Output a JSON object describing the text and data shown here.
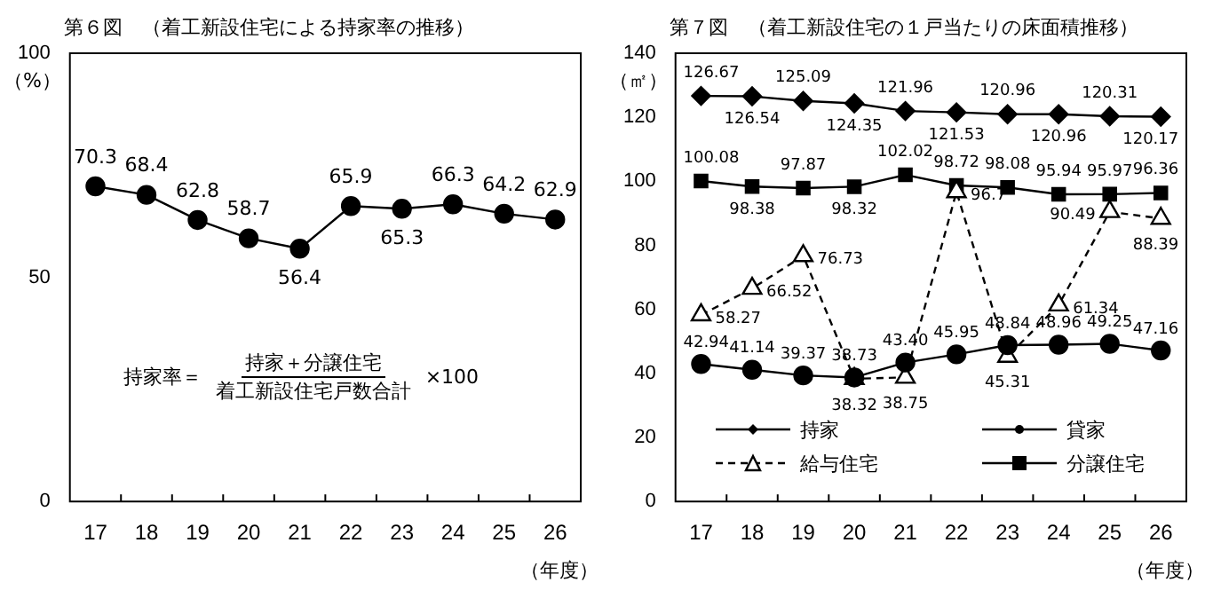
{
  "chart_data": [
    {
      "type": "line",
      "title": "第６図　（着工新設住宅による持家率の推移）",
      "ylabel": "（%）",
      "xlabel": "（年度）",
      "categories": [
        "17",
        "18",
        "19",
        "20",
        "21",
        "22",
        "23",
        "24",
        "25",
        "26"
      ],
      "series": [
        {
          "color": "#000000",
          "values": [
            70.3,
            68.4,
            62.8,
            58.7,
            56.4,
            65.9,
            65.3,
            66.3,
            64.2,
            62.9
          ]
        }
      ],
      "ylim": [
        0,
        100
      ],
      "yticks": [
        0,
        50,
        100
      ],
      "grid": false,
      "legend": false,
      "marker": "circle",
      "line_style": "solid",
      "data_labels": true,
      "annotations": [
        "持家率＝",
        "持家＋分譲住宅",
        "着工新設住宅戸数合計",
        "×100"
      ]
    },
    {
      "type": "line",
      "title": "第７図　（着工新設住宅の１戸当たりの床面積推移）",
      "ylabel": "（㎡）",
      "xlabel": "（年度）",
      "categories": [
        "17",
        "18",
        "19",
        "20",
        "21",
        "22",
        "23",
        "24",
        "25",
        "26"
      ],
      "series": [
        {
          "name": "持家",
          "color": "#000000",
          "marker": "diamond",
          "line_style": "solid",
          "values": [
            126.67,
            126.54,
            125.09,
            124.35,
            121.96,
            121.53,
            120.96,
            120.96,
            120.31,
            120.17
          ],
          "value_labels": [
            "126.67",
            "126.54",
            "125.09",
            "124.35",
            "121.96",
            "121.53",
            "120.96",
            "120.96",
            "120.31",
            "120.17"
          ]
        },
        {
          "name": "貸家",
          "color": "#000000",
          "marker": "circle",
          "line_style": "solid",
          "values": [
            42.94,
            41.14,
            39.37,
            38.73,
            43.4,
            45.95,
            48.84,
            48.96,
            49.25,
            47.16
          ],
          "value_labels": [
            "42.94",
            "41.14",
            "39.37",
            "38.73",
            "43.40",
            "45.95",
            "48.84",
            "48.96",
            "49.25",
            "47.16"
          ]
        },
        {
          "name": "給与住宅",
          "color": "#000000",
          "marker": "triangle",
          "line_style": "dashed",
          "values": [
            58.27,
            66.52,
            76.73,
            38.32,
            38.75,
            96.7,
            45.31,
            61.34,
            90.49,
            88.39
          ],
          "value_labels": [
            "58.27",
            "66.52",
            "76.73",
            "38.32",
            "38.75",
            "96.7",
            "45.31",
            "61.34",
            "90.49",
            "88.39"
          ]
        },
        {
          "name": "分譲住宅",
          "color": "#000000",
          "marker": "square",
          "line_style": "solid",
          "values": [
            100.08,
            98.38,
            97.87,
            98.32,
            102.02,
            98.72,
            98.08,
            95.94,
            95.97,
            96.36
          ],
          "value_labels": [
            "100.08",
            "98.38",
            "97.87",
            "98.32",
            "102.02",
            "98.72",
            "98.08",
            "95.94",
            "95.97",
            "96.36"
          ]
        }
      ],
      "ylim": [
        0,
        140
      ],
      "yticks": [
        0,
        20,
        40,
        60,
        80,
        100,
        120,
        140
      ],
      "grid": false,
      "legend": "bottom"
    }
  ]
}
